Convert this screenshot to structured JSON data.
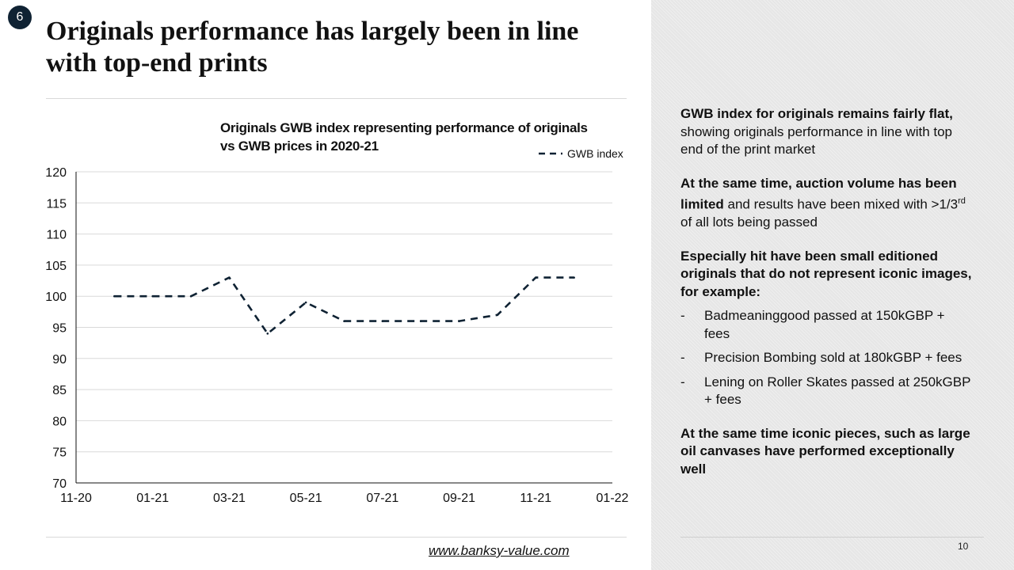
{
  "slide": {
    "number": "6",
    "title": "Originals performance has largely been in line with top-end prints",
    "footer_link": "www.banksy-value.com",
    "page_number": "10"
  },
  "chart_data": {
    "type": "line",
    "title": "Originals GWB index representing performance of originals vs GWB prices in 2020-21",
    "xlabel": "",
    "ylabel": "",
    "x_ticks": [
      "11-20",
      "01-21",
      "03-21",
      "05-21",
      "07-21",
      "09-21",
      "11-21",
      "01-22"
    ],
    "x_range": [
      "2020-11",
      "2022-01"
    ],
    "ylim": [
      70,
      120
    ],
    "y_ticks": [
      70,
      75,
      80,
      85,
      90,
      95,
      100,
      105,
      110,
      115,
      120
    ],
    "grid": true,
    "legend_position": "top-right",
    "series": [
      {
        "name": "GWB index",
        "style": "dashed",
        "color": "#0f2233",
        "x": [
          "2020-12",
          "2021-01",
          "2021-02",
          "2021-03",
          "2021-04",
          "2021-05",
          "2021-06",
          "2021-07",
          "2021-08",
          "2021-09",
          "2021-10",
          "2021-11",
          "2021-12"
        ],
        "values": [
          100,
          100,
          100,
          103,
          94,
          99,
          96,
          96,
          96,
          96,
          97,
          103,
          103
        ]
      }
    ]
  },
  "sidebar": {
    "p1_bold": "GWB index for originals remains fairly flat,",
    "p1_rest": " showing originals performance in line with top end of the print market",
    "p2_bold": "At the same time, auction volume has been limited",
    "p2_rest": " and results have been mixed with >1/3",
    "p2_sup": "rd",
    "p2_tail": " of all lots being passed",
    "p3_bold": "Especially hit have been small editioned originals that do not represent iconic images, for example:",
    "examples": [
      "Badmeaninggood passed at 150kGBP + fees",
      "Precision Bombing sold at 180kGBP + fees",
      "Lening on Roller Skates passed at 250kGBP + fees"
    ],
    "p4_bold": "At the same time iconic pieces, such as large oil canvases have performed exceptionally well"
  }
}
